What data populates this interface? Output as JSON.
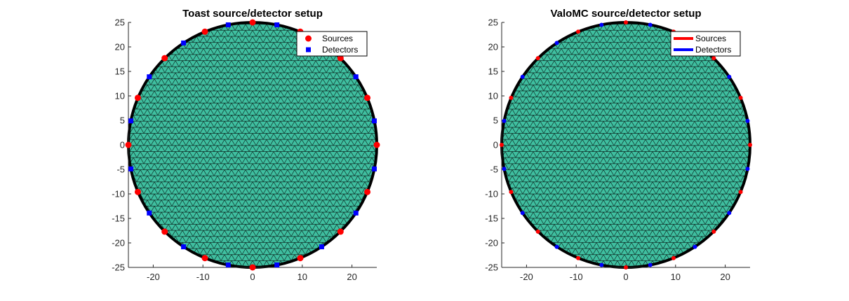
{
  "chart_data": [
    {
      "type": "scatter",
      "title": "Toast source/detector setup",
      "xlabel": "",
      "ylabel": "",
      "xlim": [
        -25,
        25
      ],
      "ylim": [
        -25,
        25
      ],
      "xticks": [
        -20,
        -10,
        0,
        10,
        20
      ],
      "yticks": [
        -25,
        -20,
        -15,
        -10,
        -5,
        0,
        5,
        10,
        15,
        20,
        25
      ],
      "grid": false,
      "mesh": {
        "shape": "disc",
        "radius": 25,
        "face_color": "#3fbfa0",
        "edge_color": "#000000"
      },
      "legend": {
        "position": "top-right",
        "style": "markers"
      },
      "series": [
        {
          "name": "Sources",
          "marker": "circle",
          "color": "#ff0000",
          "points": [
            [
              25,
              0
            ],
            [
              23.1,
              9.6
            ],
            [
              17.7,
              17.7
            ],
            [
              9.6,
              23.1
            ],
            [
              0,
              25
            ],
            [
              -9.6,
              23.1
            ],
            [
              -17.7,
              17.7
            ],
            [
              -23.1,
              9.6
            ],
            [
              -25,
              0
            ],
            [
              -23.1,
              -9.6
            ],
            [
              -17.7,
              -17.7
            ],
            [
              -9.6,
              -23.1
            ],
            [
              0,
              -25
            ],
            [
              9.6,
              -23.1
            ],
            [
              17.7,
              -17.7
            ],
            [
              23.1,
              -9.6
            ]
          ]
        },
        {
          "name": "Detectors",
          "marker": "square",
          "color": "#0000ff",
          "points": [
            [
              24.5,
              4.9
            ],
            [
              20.8,
              13.9
            ],
            [
              13.9,
              20.8
            ],
            [
              4.9,
              24.5
            ],
            [
              -4.9,
              24.5
            ],
            [
              -13.9,
              20.8
            ],
            [
              -20.8,
              13.9
            ],
            [
              -24.5,
              4.9
            ],
            [
              -24.5,
              -4.9
            ],
            [
              -20.8,
              -13.9
            ],
            [
              -13.9,
              -20.8
            ],
            [
              -4.9,
              -24.5
            ],
            [
              4.9,
              -24.5
            ],
            [
              13.9,
              -20.8
            ],
            [
              20.8,
              -13.9
            ],
            [
              24.5,
              -4.9
            ]
          ]
        }
      ]
    },
    {
      "type": "scatter",
      "title": "ValoMC source/detector setup",
      "xlabel": "",
      "ylabel": "",
      "xlim": [
        -25,
        25
      ],
      "ylim": [
        -25,
        25
      ],
      "xticks": [
        -20,
        -10,
        0,
        10,
        20
      ],
      "yticks": [
        -25,
        -20,
        -15,
        -10,
        -5,
        0,
        5,
        10,
        15,
        20,
        25
      ],
      "grid": false,
      "mesh": {
        "shape": "disc",
        "radius": 25,
        "face_color": "#3fbfa0",
        "edge_color": "#000000"
      },
      "legend": {
        "position": "top-right",
        "style": "lines"
      },
      "series": [
        {
          "name": "Sources",
          "marker": "line",
          "color": "#ff0000",
          "points": [
            [
              25,
              0
            ],
            [
              23.1,
              9.6
            ],
            [
              17.7,
              17.7
            ],
            [
              9.6,
              23.1
            ],
            [
              0,
              25
            ],
            [
              -9.6,
              23.1
            ],
            [
              -17.7,
              17.7
            ],
            [
              -23.1,
              9.6
            ],
            [
              -25,
              0
            ],
            [
              -23.1,
              -9.6
            ],
            [
              -17.7,
              -17.7
            ],
            [
              -9.6,
              -23.1
            ],
            [
              0,
              -25
            ],
            [
              9.6,
              -23.1
            ],
            [
              17.7,
              -17.7
            ],
            [
              23.1,
              -9.6
            ]
          ]
        },
        {
          "name": "Detectors",
          "marker": "line",
          "color": "#0000ff",
          "points": [
            [
              24.5,
              4.9
            ],
            [
              20.8,
              13.9
            ],
            [
              13.9,
              20.8
            ],
            [
              4.9,
              24.5
            ],
            [
              -4.9,
              24.5
            ],
            [
              -13.9,
              20.8
            ],
            [
              -20.8,
              13.9
            ],
            [
              -24.5,
              4.9
            ],
            [
              -24.5,
              -4.9
            ],
            [
              -20.8,
              -13.9
            ],
            [
              -13.9,
              -20.8
            ],
            [
              -4.9,
              -24.5
            ],
            [
              4.9,
              -24.5
            ],
            [
              13.9,
              -20.8
            ],
            [
              20.8,
              -13.9
            ],
            [
              24.5,
              -4.9
            ]
          ]
        }
      ]
    }
  ]
}
